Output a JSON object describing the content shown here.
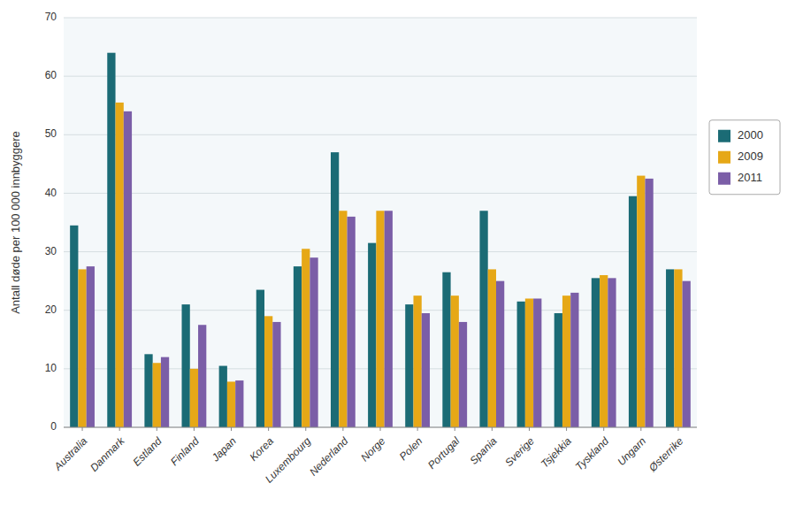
{
  "chart_data": {
    "type": "bar",
    "categories": [
      "Australia",
      "Danmark",
      "Estland",
      "Finland",
      "Japan",
      "Korea",
      "Luxembourg",
      "Nederland",
      "Norge",
      "Polen",
      "Portugal",
      "Spania",
      "Sverige",
      "Tsjekkia",
      "Tyskland",
      "Ungarn",
      "Østerrike"
    ],
    "series": [
      {
        "name": "2000",
        "color": "#1b6b75",
        "values": [
          34.5,
          64.0,
          12.5,
          21.0,
          10.5,
          23.5,
          27.5,
          47.0,
          31.5,
          21.0,
          26.5,
          37.0,
          21.5,
          19.5,
          25.5,
          39.5,
          27.0
        ]
      },
      {
        "name": "2009",
        "color": "#e6a817",
        "values": [
          27.0,
          55.5,
          11.0,
          10.0,
          7.8,
          19.0,
          30.5,
          37.0,
          37.0,
          22.5,
          22.5,
          27.0,
          22.0,
          22.5,
          26.0,
          43.0,
          27.0
        ]
      },
      {
        "name": "2011",
        "color": "#7b5ea7",
        "values": [
          27.5,
          54.0,
          12.0,
          17.5,
          8.0,
          18.0,
          29.0,
          36.0,
          37.0,
          19.5,
          18.0,
          25.0,
          22.0,
          23.0,
          25.5,
          42.5,
          25.0
        ]
      }
    ],
    "ylabel": "Antall døde per 100 000 innbyggere",
    "ylim": [
      0,
      70
    ],
    "yticks": [
      0,
      10,
      20,
      30,
      40,
      50,
      60,
      70
    ],
    "grid": true,
    "legend": "right"
  }
}
